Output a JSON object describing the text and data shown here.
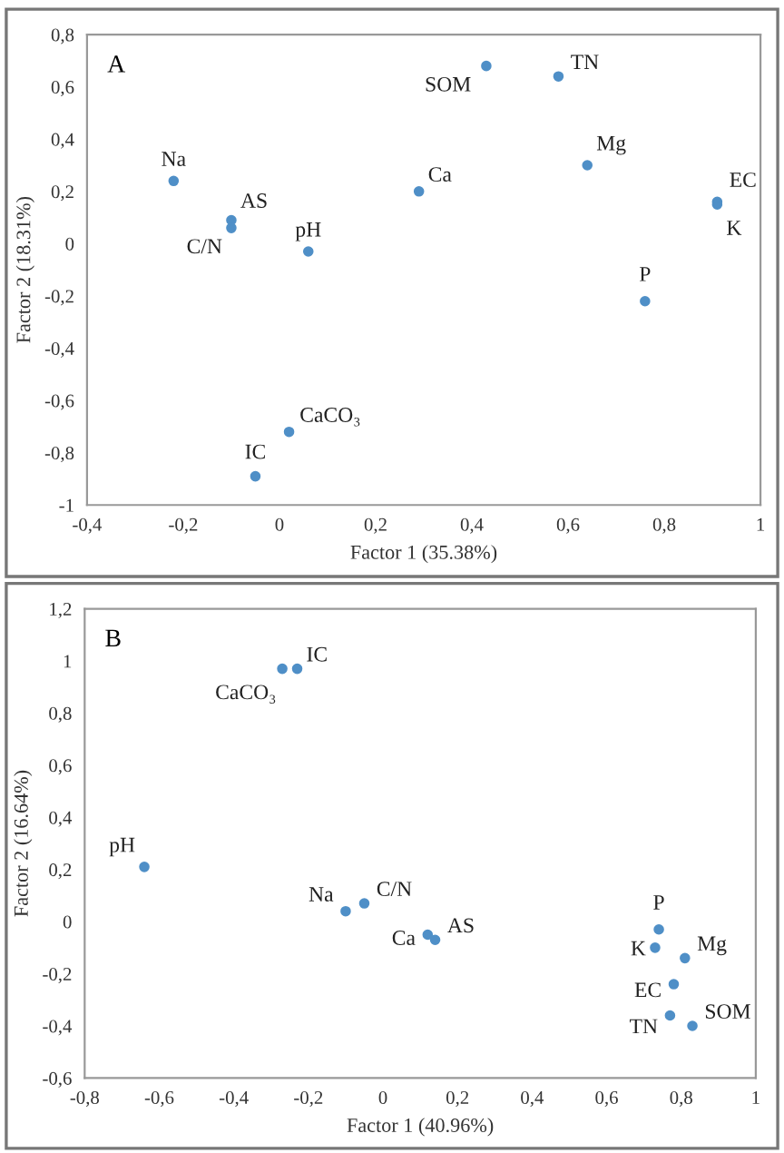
{
  "chart_data": [
    {
      "type": "scatter",
      "xlabel": "Factor 1 (35.38%)",
      "ylabel": "Factor 2 (18.31%)",
      "x": [
        -0.22,
        -0.1,
        -0.1,
        0.06,
        0.29,
        0.43,
        0.58,
        0.64,
        0.91,
        0.91,
        0.76,
        0.02,
        -0.05
      ],
      "series": [
        {
          "color": "#4f8fc7",
          "values": [
            0.24,
            0.09,
            0.06,
            -0.03,
            0.2,
            0.68,
            0.64,
            0.3,
            0.16,
            0.15,
            -0.22,
            -0.72,
            -0.89
          ]
        }
      ],
      "marker": "circle",
      "grid": false,
      "legend": false,
      "xlim": [
        -0.4,
        1
      ],
      "ylim": [
        -1,
        0.8
      ],
      "xticks": [
        {
          "value": -0.4,
          "label": "-0,4"
        },
        {
          "value": -0.2,
          "label": "-0,2"
        },
        0,
        {
          "value": 0.2,
          "label": "0,2"
        },
        {
          "value": 0.4,
          "label": "0,4"
        },
        {
          "value": 0.6,
          "label": "0,6"
        },
        {
          "value": 0.8,
          "label": "0,8"
        },
        1
      ],
      "yticks": [
        -1,
        {
          "value": -0.8,
          "label": "-0,8"
        },
        {
          "value": -0.6,
          "label": "-0,6"
        },
        {
          "value": -0.4,
          "label": "-0,4"
        },
        {
          "value": -0.2,
          "label": "-0,2"
        },
        0,
        {
          "value": 0.2,
          "label": "0,2"
        },
        {
          "value": 0.4,
          "label": "0,4"
        },
        {
          "value": 0.6,
          "label": "0,6"
        },
        {
          "value": 0.8,
          "label": "0,8"
        }
      ],
      "annotations": [
        "A",
        {
          "text": "Na",
          "x": -0.22,
          "y": 0.24
        },
        {
          "text": "AS",
          "x": -0.1,
          "y": 0.09
        },
        {
          "text": "C/N",
          "x": -0.1,
          "y": 0.06
        },
        {
          "text": "pH",
          "x": 0.06,
          "y": -0.03
        },
        {
          "text": "Ca",
          "x": 0.29,
          "y": 0.2
        },
        {
          "text": "SOM",
          "x": 0.43,
          "y": 0.68
        },
        {
          "text": "TN",
          "x": 0.58,
          "y": 0.64
        },
        {
          "text": "Mg",
          "x": 0.64,
          "y": 0.3
        },
        {
          "text": "EC",
          "x": 0.91,
          "y": 0.16
        },
        {
          "text": "K",
          "x": 0.91,
          "y": 0.15
        },
        {
          "text": "P",
          "x": 0.76,
          "y": -0.22
        },
        {
          "text": "CaCO₃",
          "x": 0.02,
          "y": -0.72
        },
        {
          "text": "IC",
          "x": -0.05,
          "y": -0.89
        }
      ]
    },
    {
      "type": "scatter",
      "xlabel": "Factor 1 (40.96%)",
      "ylabel": "Factor 2 (16.64%)",
      "x": [
        -0.27,
        -0.23,
        -0.64,
        -0.1,
        -0.05,
        0.12,
        0.14,
        0.74,
        0.73,
        0.81,
        0.78,
        0.77,
        0.83
      ],
      "series": [
        {
          "color": "#4f8fc7",
          "values": [
            0.97,
            0.97,
            0.21,
            0.04,
            0.07,
            -0.05,
            -0.07,
            -0.03,
            -0.1,
            -0.14,
            -0.24,
            -0.36,
            -0.4
          ]
        }
      ],
      "marker": "circle",
      "grid": false,
      "legend": false,
      "xlim": [
        -0.8,
        1
      ],
      "ylim": [
        -0.6,
        1.2
      ],
      "xticks": [
        {
          "value": -0.8,
          "label": "-0,8"
        },
        {
          "value": -0.6,
          "label": "-0,6"
        },
        {
          "value": -0.4,
          "label": "-0,4"
        },
        {
          "value": -0.2,
          "label": "-0,2"
        },
        0,
        {
          "value": 0.2,
          "label": "0,2"
        },
        {
          "value": 0.4,
          "label": "0,4"
        },
        {
          "value": 0.6,
          "label": "0,6"
        },
        {
          "value": 0.8,
          "label": "0,8"
        },
        1
      ],
      "yticks": [
        {
          "value": -0.6,
          "label": "-0,6"
        },
        {
          "value": -0.4,
          "label": "-0,4"
        },
        {
          "value": -0.2,
          "label": "-0,2"
        },
        0,
        {
          "value": 0.2,
          "label": "0,2"
        },
        {
          "value": 0.4,
          "label": "0,4"
        },
        {
          "value": 0.6,
          "label": "0,6"
        },
        {
          "value": 0.8,
          "label": "0,8"
        },
        1,
        {
          "value": 1.2,
          "label": "1,2"
        }
      ],
      "annotations": [
        "B",
        {
          "text": "CaCO₃",
          "x": -0.27,
          "y": 0.97
        },
        {
          "text": "IC",
          "x": -0.23,
          "y": 0.97
        },
        {
          "text": "pH",
          "x": -0.64,
          "y": 0.21
        },
        {
          "text": "Na",
          "x": -0.1,
          "y": 0.04
        },
        {
          "text": "C/N",
          "x": -0.05,
          "y": 0.07
        },
        {
          "text": "Ca",
          "x": 0.12,
          "y": -0.05
        },
        {
          "text": "AS",
          "x": 0.14,
          "y": -0.07
        },
        {
          "text": "P",
          "x": 0.74,
          "y": -0.03
        },
        {
          "text": "K",
          "x": 0.73,
          "y": -0.1
        },
        {
          "text": "Mg",
          "x": 0.81,
          "y": -0.14
        },
        {
          "text": "EC",
          "x": 0.78,
          "y": -0.24
        },
        {
          "text": "TN",
          "x": 0.77,
          "y": -0.36
        },
        {
          "text": "SOM",
          "x": 0.83,
          "y": -0.4
        }
      ]
    }
  ]
}
